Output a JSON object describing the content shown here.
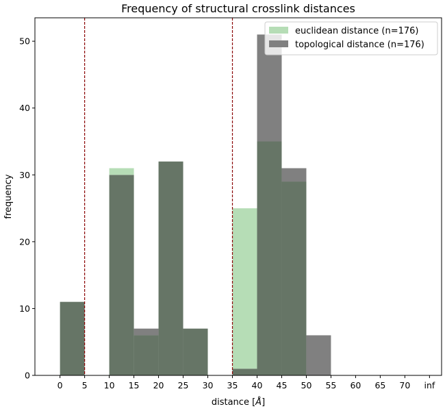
{
  "chart_data": {
    "type": "bar",
    "title": "Frequency of structural crosslink distances",
    "xlabel": "distance [",
    "xlabel_unit": "Å",
    "xlabel_close": "]",
    "ylabel": "frequency",
    "x_ticks": [
      "0",
      "5",
      "10",
      "15",
      "20",
      "25",
      "30",
      "35",
      "40",
      "45",
      "50",
      "55",
      "60",
      "65",
      "70",
      "inf"
    ],
    "y_ticks": [
      0,
      10,
      20,
      30,
      40,
      50
    ],
    "ylim": [
      0,
      53.5
    ],
    "bin_edges": [
      0,
      5,
      10,
      15,
      20,
      25,
      30,
      35,
      40,
      45,
      50,
      55,
      60,
      65,
      70,
      75
    ],
    "series": [
      {
        "name": "euclidean distance (n=176)",
        "color": "#b6ddb6",
        "values": [
          11,
          0,
          31,
          6,
          32,
          7,
          0,
          25,
          35,
          29,
          0,
          0,
          0,
          0,
          0
        ]
      },
      {
        "name": "topological distance (n=176)",
        "color": "#808080",
        "values": [
          11,
          0,
          30,
          7,
          32,
          7,
          0,
          1,
          51,
          31,
          6,
          0,
          0,
          0,
          0
        ]
      }
    ],
    "overlap_color": "#667566",
    "threshold_lines": [
      5,
      35
    ],
    "threshold_color": "#8b0000",
    "legend_position": "top-right",
    "grid": false
  }
}
